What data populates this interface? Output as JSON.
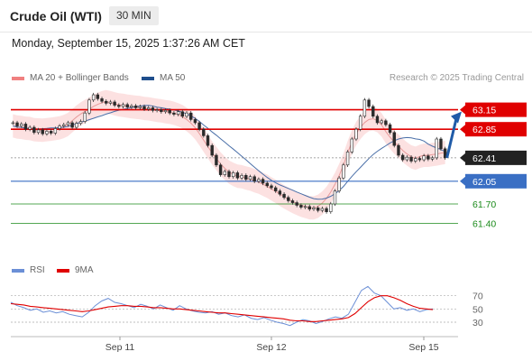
{
  "header": {
    "instrument": "Crude Oil (WTI)",
    "timeframe": "30 MIN",
    "datetime": "Monday, September 15, 2025 1:37:26 AM CET"
  },
  "legend": {
    "ma20": "MA 20 + Bollinger Bands",
    "ma50": "MA 50",
    "credit": "Research © 2025 Trading Central",
    "ma20_color": "#f08080",
    "ma50_color": "#1f4e8c"
  },
  "rsi_legend": {
    "rsi": "RSI",
    "ma9": "9MA",
    "rsi_color": "#6b8fd6",
    "ma9_color": "#e00000"
  },
  "chart_data": {
    "type": "candlestick",
    "price_range": [
      61.2,
      63.45
    ],
    "current_price": 62.41,
    "levels": [
      {
        "label": "63.15",
        "value": 63.15,
        "color": "#e00000",
        "kind": "resistance"
      },
      {
        "label": "62.85",
        "value": 62.85,
        "color": "#e00000",
        "kind": "resistance"
      },
      {
        "label": "62.41",
        "value": 62.41,
        "color": "#222222",
        "kind": "last"
      },
      {
        "label": "62.05",
        "value": 62.05,
        "color": "#3a6fc4",
        "kind": "pivot"
      },
      {
        "label": "61.70",
        "value": 61.7,
        "color": "#1a8a1a",
        "kind": "support"
      },
      {
        "label": "61.40",
        "value": 61.4,
        "color": "#1a8a1a",
        "kind": "support"
      }
    ],
    "candles": [
      62.95,
      62.9,
      62.93,
      62.85,
      62.88,
      62.8,
      62.84,
      62.78,
      62.82,
      62.79,
      62.86,
      62.9,
      62.92,
      62.95,
      62.88,
      62.94,
      62.97,
      63.1,
      63.3,
      63.38,
      63.32,
      63.28,
      63.25,
      63.27,
      63.22,
      63.2,
      63.23,
      63.19,
      63.21,
      63.18,
      63.2,
      63.16,
      63.18,
      63.14,
      63.15,
      63.12,
      63.14,
      63.1,
      63.08,
      63.12,
      63.05,
      63.1,
      63.0,
      62.95,
      62.85,
      62.75,
      62.6,
      62.45,
      62.3,
      62.15,
      62.2,
      62.12,
      62.18,
      62.1,
      62.14,
      62.08,
      62.12,
      62.05,
      62.08,
      62.02,
      61.98,
      61.95,
      61.9,
      61.85,
      61.8,
      61.75,
      61.72,
      61.68,
      61.65,
      61.66,
      61.62,
      61.64,
      61.6,
      61.63,
      61.58,
      61.7,
      61.9,
      62.1,
      62.3,
      62.5,
      62.7,
      62.85,
      63.05,
      63.3,
      63.2,
      63.05,
      62.95,
      62.98,
      62.92,
      62.8,
      62.6,
      62.45,
      62.38,
      62.42,
      62.36,
      62.4,
      62.38,
      62.44,
      62.39,
      62.41,
      62.7,
      62.55,
      62.41
    ],
    "forecast": {
      "from": 62.41,
      "to": 63.15
    },
    "x_ticks": [
      "Sep 11",
      "Sep 12",
      "Sep 15"
    ],
    "rsi": {
      "levels": [
        70,
        50,
        30
      ],
      "level_labels": [
        "70",
        "50",
        "30"
      ],
      "rsi_values": [
        60,
        55,
        52,
        48,
        50,
        45,
        47,
        44,
        46,
        42,
        40,
        38,
        45,
        55,
        62,
        66,
        60,
        58,
        55,
        52,
        57,
        54,
        50,
        56,
        52,
        48,
        55,
        50,
        47,
        45,
        44,
        46,
        42,
        44,
        40,
        38,
        41,
        36,
        34,
        37,
        33,
        30,
        28,
        25,
        30,
        34,
        32,
        28,
        31,
        35,
        38,
        36,
        42,
        60,
        78,
        84,
        74,
        70,
        60,
        50,
        52,
        48,
        50,
        46,
        49,
        50
      ],
      "ma9_values": [
        58,
        57,
        56,
        54,
        53,
        52,
        51,
        50,
        49,
        48,
        47,
        46,
        47,
        49,
        51,
        53,
        54,
        55,
        55,
        54,
        54,
        53,
        52,
        52,
        51,
        50,
        50,
        49,
        48,
        47,
        46,
        45,
        44,
        44,
        43,
        42,
        41,
        40,
        39,
        38,
        37,
        36,
        35,
        33,
        32,
        32,
        31,
        31,
        32,
        33,
        34,
        35,
        37,
        43,
        52,
        61,
        67,
        70,
        70,
        67,
        63,
        58,
        54,
        51,
        50,
        49
      ]
    }
  }
}
